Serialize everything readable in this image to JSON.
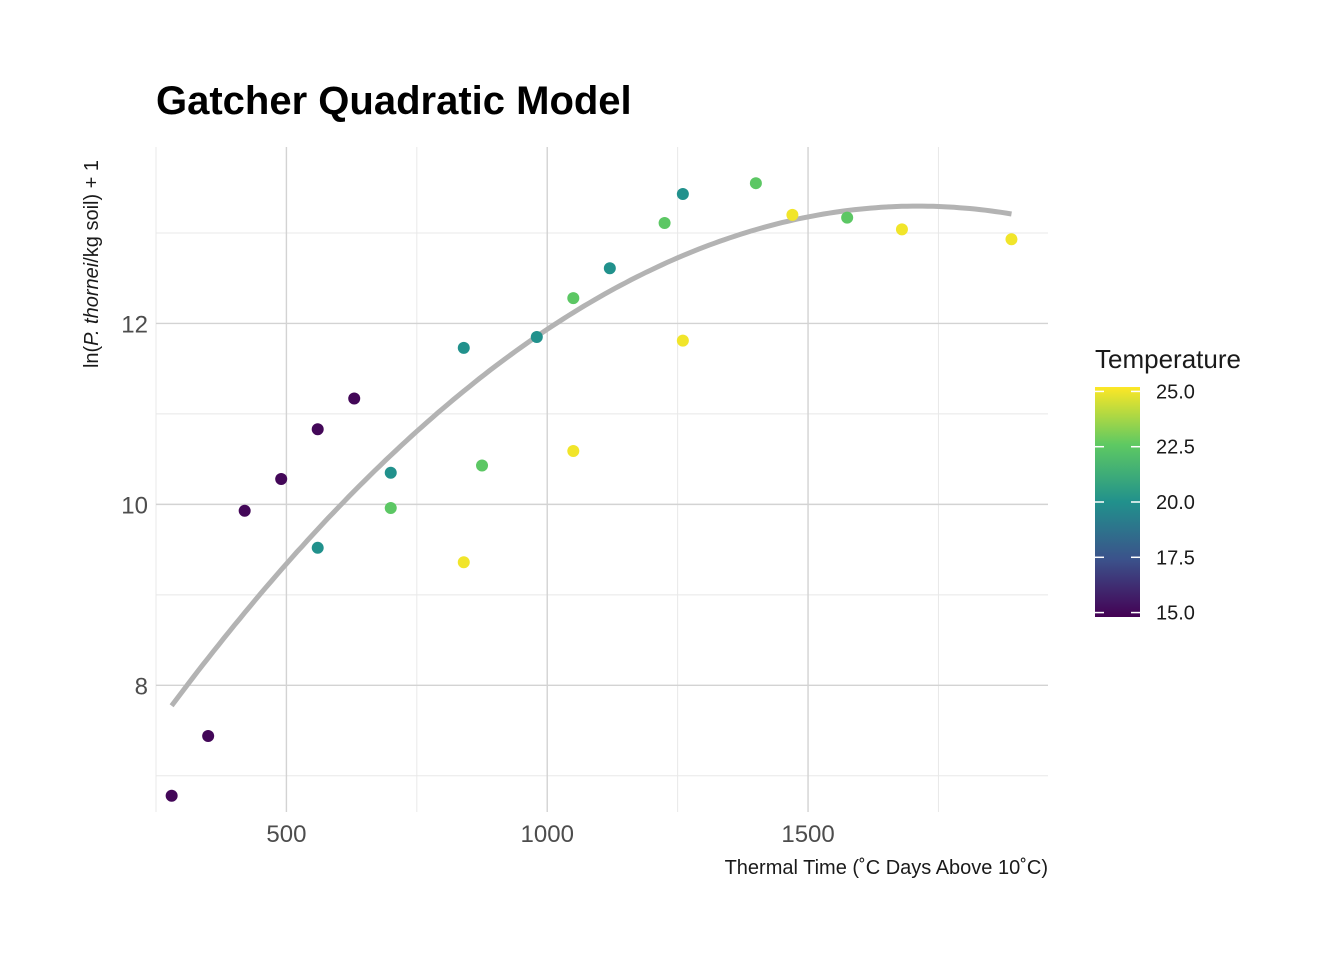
{
  "chart_data": {
    "type": "scatter",
    "title": "Gatcher Quadratic Model",
    "xlabel": "Thermal Time (˚C Days Above 10˚C)",
    "ylabel_parts": [
      "ln(",
      "P. thornei",
      "/kg soil) + 1"
    ],
    "xlim": [
      250,
      1960
    ],
    "ylim": [
      6.6,
      13.95
    ],
    "x_ticks": [
      500,
      1000,
      1500
    ],
    "x_tick_labels": [
      "500",
      "1000",
      "1500"
    ],
    "x_minor": [
      250,
      750,
      1250,
      1750
    ],
    "y_ticks": [
      8,
      10,
      12
    ],
    "y_tick_labels": [
      "8",
      "10",
      "12"
    ],
    "y_minor": [
      7,
      9,
      11,
      13
    ],
    "grid": true,
    "legend": {
      "title": "Temperature",
      "placement": "right",
      "min": 14.8,
      "max": 25.2,
      "ticks": [
        15.0,
        17.5,
        20.0,
        22.5,
        25.0
      ],
      "tick_labels": [
        "15.0",
        "17.5",
        "20.0",
        "22.5",
        "25.0"
      ],
      "colormap": [
        "#440154",
        "#3b528b",
        "#21918c",
        "#5ec962",
        "#fde725"
      ]
    },
    "points": [
      {
        "x": 280,
        "y": 6.78,
        "temperature": 15
      },
      {
        "x": 350,
        "y": 7.44,
        "temperature": 15
      },
      {
        "x": 420,
        "y": 9.93,
        "temperature": 15
      },
      {
        "x": 490,
        "y": 10.28,
        "temperature": 15
      },
      {
        "x": 560,
        "y": 10.83,
        "temperature": 15
      },
      {
        "x": 630,
        "y": 11.17,
        "temperature": 15
      },
      {
        "x": 560,
        "y": 9.52,
        "temperature": 20
      },
      {
        "x": 700,
        "y": 10.35,
        "temperature": 20
      },
      {
        "x": 840,
        "y": 11.73,
        "temperature": 20
      },
      {
        "x": 980,
        "y": 11.85,
        "temperature": 20
      },
      {
        "x": 1120,
        "y": 12.61,
        "temperature": 20
      },
      {
        "x": 1260,
        "y": 13.43,
        "temperature": 20
      },
      {
        "x": 700,
        "y": 9.96,
        "temperature": 22.5
      },
      {
        "x": 875,
        "y": 10.43,
        "temperature": 22.5
      },
      {
        "x": 1050,
        "y": 12.28,
        "temperature": 22.5
      },
      {
        "x": 1225,
        "y": 13.11,
        "temperature": 22.5
      },
      {
        "x": 1400,
        "y": 13.55,
        "temperature": 22.5
      },
      {
        "x": 1575,
        "y": 13.17,
        "temperature": 22.5
      },
      {
        "x": 840,
        "y": 9.36,
        "temperature": 25
      },
      {
        "x": 1050,
        "y": 10.59,
        "temperature": 25
      },
      {
        "x": 1260,
        "y": 11.81,
        "temperature": 25
      },
      {
        "x": 1470,
        "y": 13.2,
        "temperature": 25
      },
      {
        "x": 1680,
        "y": 13.04,
        "temperature": 25
      },
      {
        "x": 1890,
        "y": 12.93,
        "temperature": 25
      }
    ],
    "fit": {
      "type": "quadratic",
      "color": "#b3b3b3",
      "x_range": [
        280,
        1890
      ],
      "coefficients": {
        "a": -2.7e-06,
        "b": 0.009235,
        "c": 5.4
      }
    }
  }
}
